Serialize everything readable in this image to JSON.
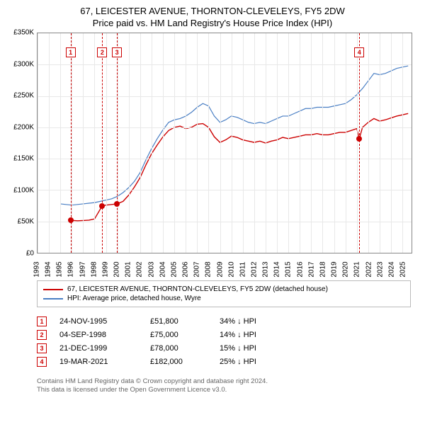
{
  "title": "67, LEICESTER AVENUE, THORNTON-CLEVELEYS, FY5 2DW",
  "subtitle": "Price paid vs. HM Land Registry's House Price Index (HPI)",
  "chart": {
    "type": "line",
    "background_color": "#ffffff",
    "grid_color": "#e8e8e8",
    "border_color": "#888888",
    "xlim": [
      1993,
      2025.8
    ],
    "ylim": [
      0,
      350000
    ],
    "y_ticks": [
      0,
      50000,
      100000,
      150000,
      200000,
      250000,
      300000,
      350000
    ],
    "y_tick_labels": [
      "£0",
      "£50K",
      "£100K",
      "£150K",
      "£200K",
      "£250K",
      "£300K",
      "£350K"
    ],
    "x_ticks": [
      1993,
      1994,
      1995,
      1996,
      1997,
      1998,
      1999,
      2000,
      2001,
      2002,
      2003,
      2004,
      2005,
      2006,
      2007,
      2008,
      2009,
      2010,
      2011,
      2012,
      2013,
      2014,
      2015,
      2016,
      2017,
      2018,
      2019,
      2020,
      2021,
      2022,
      2023,
      2024,
      2025
    ],
    "series_red": {
      "color": "#cc0000",
      "width": 1.4,
      "label": "67, LEICESTER AVENUE, THORNTON-CLEVELEYS, FY5 2DW (detached house)",
      "points": [
        [
          1995.9,
          51800
        ],
        [
          1996.5,
          51000
        ],
        [
          1997,
          51500
        ],
        [
          1997.5,
          52000
        ],
        [
          1998,
          54000
        ],
        [
          1998.68,
          75000
        ],
        [
          1999,
          76000
        ],
        [
          1999.5,
          77000
        ],
        [
          1999.97,
          78000
        ],
        [
          2000.5,
          82000
        ],
        [
          2001,
          92000
        ],
        [
          2001.5,
          105000
        ],
        [
          2002,
          120000
        ],
        [
          2002.5,
          140000
        ],
        [
          2003,
          158000
        ],
        [
          2003.5,
          172000
        ],
        [
          2004,
          185000
        ],
        [
          2004.5,
          195000
        ],
        [
          2005,
          200000
        ],
        [
          2005.5,
          202000
        ],
        [
          2006,
          198000
        ],
        [
          2006.5,
          200000
        ],
        [
          2007,
          205000
        ],
        [
          2007.5,
          206000
        ],
        [
          2008,
          200000
        ],
        [
          2008.5,
          185000
        ],
        [
          2009,
          176000
        ],
        [
          2009.5,
          180000
        ],
        [
          2010,
          186000
        ],
        [
          2010.5,
          184000
        ],
        [
          2011,
          180000
        ],
        [
          2011.5,
          178000
        ],
        [
          2012,
          176000
        ],
        [
          2012.5,
          178000
        ],
        [
          2013,
          175000
        ],
        [
          2013.5,
          178000
        ],
        [
          2014,
          180000
        ],
        [
          2014.5,
          184000
        ],
        [
          2015,
          182000
        ],
        [
          2015.5,
          184000
        ],
        [
          2016,
          186000
        ],
        [
          2016.5,
          188000
        ],
        [
          2017,
          188000
        ],
        [
          2017.5,
          190000
        ],
        [
          2018,
          188000
        ],
        [
          2018.5,
          188000
        ],
        [
          2019,
          190000
        ],
        [
          2019.5,
          192000
        ],
        [
          2020,
          192000
        ],
        [
          2020.5,
          195000
        ],
        [
          2021,
          198000
        ],
        [
          2021.22,
          182000
        ],
        [
          2021.5,
          200000
        ],
        [
          2022,
          208000
        ],
        [
          2022.5,
          214000
        ],
        [
          2023,
          210000
        ],
        [
          2023.5,
          212000
        ],
        [
          2024,
          215000
        ],
        [
          2024.5,
          218000
        ],
        [
          2025,
          220000
        ],
        [
          2025.5,
          222000
        ]
      ]
    },
    "series_blue": {
      "color": "#4a7fc4",
      "width": 1.2,
      "label": "HPI: Average price, detached house, Wyre",
      "points": [
        [
          1995,
          78000
        ],
        [
          1995.5,
          77000
        ],
        [
          1996,
          76000
        ],
        [
          1996.5,
          77000
        ],
        [
          1997,
          78000
        ],
        [
          1997.5,
          79000
        ],
        [
          1998,
          80000
        ],
        [
          1998.5,
          82000
        ],
        [
          1999,
          84000
        ],
        [
          1999.5,
          86000
        ],
        [
          2000,
          90000
        ],
        [
          2000.5,
          96000
        ],
        [
          2001,
          104000
        ],
        [
          2001.5,
          114000
        ],
        [
          2002,
          128000
        ],
        [
          2002.5,
          148000
        ],
        [
          2003,
          166000
        ],
        [
          2003.5,
          182000
        ],
        [
          2004,
          196000
        ],
        [
          2004.5,
          208000
        ],
        [
          2005,
          212000
        ],
        [
          2005.5,
          214000
        ],
        [
          2006,
          218000
        ],
        [
          2006.5,
          224000
        ],
        [
          2007,
          232000
        ],
        [
          2007.5,
          238000
        ],
        [
          2008,
          234000
        ],
        [
          2008.5,
          218000
        ],
        [
          2009,
          208000
        ],
        [
          2009.5,
          212000
        ],
        [
          2010,
          218000
        ],
        [
          2010.5,
          216000
        ],
        [
          2011,
          212000
        ],
        [
          2011.5,
          208000
        ],
        [
          2012,
          206000
        ],
        [
          2012.5,
          208000
        ],
        [
          2013,
          206000
        ],
        [
          2013.5,
          210000
        ],
        [
          2014,
          214000
        ],
        [
          2014.5,
          218000
        ],
        [
          2015,
          218000
        ],
        [
          2015.5,
          222000
        ],
        [
          2016,
          226000
        ],
        [
          2016.5,
          230000
        ],
        [
          2017,
          230000
        ],
        [
          2017.5,
          232000
        ],
        [
          2018,
          232000
        ],
        [
          2018.5,
          232000
        ],
        [
          2019,
          234000
        ],
        [
          2019.5,
          236000
        ],
        [
          2020,
          238000
        ],
        [
          2020.5,
          244000
        ],
        [
          2021,
          252000
        ],
        [
          2021.5,
          262000
        ],
        [
          2022,
          274000
        ],
        [
          2022.5,
          286000
        ],
        [
          2023,
          284000
        ],
        [
          2023.5,
          286000
        ],
        [
          2024,
          290000
        ],
        [
          2024.5,
          294000
        ],
        [
          2025,
          296000
        ],
        [
          2025.5,
          298000
        ]
      ]
    },
    "event_markers": [
      {
        "n": "1",
        "x": 1995.9,
        "y": 51800,
        "box_top": 20,
        "line_color": "#cc0000"
      },
      {
        "n": "2",
        "x": 1998.68,
        "y": 75000,
        "box_top": 20,
        "line_color": "#cc0000"
      },
      {
        "n": "3",
        "x": 1999.97,
        "y": 78000,
        "box_top": 20,
        "line_color": "#cc0000"
      },
      {
        "n": "4",
        "x": 2021.22,
        "y": 182000,
        "box_top": 20,
        "line_color": "#cc0000"
      }
    ]
  },
  "legend": {
    "border_color": "#bbbbbb"
  },
  "events": [
    {
      "n": "1",
      "date": "24-NOV-1995",
      "price": "£51,800",
      "delta": "34% ↓ HPI"
    },
    {
      "n": "2",
      "date": "04-SEP-1998",
      "price": "£75,000",
      "delta": "14% ↓ HPI"
    },
    {
      "n": "3",
      "date": "21-DEC-1999",
      "price": "£78,000",
      "delta": "15% ↓ HPI"
    },
    {
      "n": "4",
      "date": "19-MAR-2021",
      "price": "£182,000",
      "delta": "25% ↓ HPI"
    }
  ],
  "footer": {
    "line1": "Contains HM Land Registry data © Crown copyright and database right 2024.",
    "line2": "This data is licensed under the Open Government Licence v3.0."
  }
}
